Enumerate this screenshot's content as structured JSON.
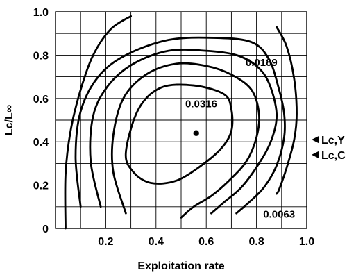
{
  "chart_data": {
    "type": "contour",
    "title": "",
    "xlabel": "Exploitation rate",
    "ylabel": "Lc/L∞",
    "xlim": [
      0,
      1
    ],
    "ylim": [
      0,
      1
    ],
    "x_tick_labels": [
      "0.2",
      "0.4",
      "0.6",
      "0.8",
      "1.0"
    ],
    "y_tick_labels": [
      "0",
      "0.2",
      "0.4",
      "0.6",
      "0.8",
      "1.0"
    ],
    "grid": true,
    "maximum_point": {
      "x": 0.56,
      "y": 0.44
    },
    "contour_labels": [
      "0.0316",
      "0.0189",
      "0.0063"
    ],
    "side_markers": [
      {
        "label": "Lc,Y",
        "y": 0.41
      },
      {
        "label": "Lc,C",
        "y": 0.34
      }
    ],
    "contours": [
      {
        "name": "innermost",
        "closed": true,
        "points": [
          [
            0.28,
            0.35
          ],
          [
            0.33,
            0.55
          ],
          [
            0.42,
            0.65
          ],
          [
            0.55,
            0.66
          ],
          [
            0.67,
            0.62
          ],
          [
            0.7,
            0.55
          ],
          [
            0.7,
            0.45
          ],
          [
            0.66,
            0.37
          ],
          [
            0.58,
            0.29
          ],
          [
            0.48,
            0.22
          ],
          [
            0.38,
            0.21
          ],
          [
            0.31,
            0.26
          ]
        ]
      },
      {
        "name": "0.0316",
        "closed": false,
        "points": [
          [
            0.28,
            0.07
          ],
          [
            0.23,
            0.26
          ],
          [
            0.23,
            0.43
          ],
          [
            0.27,
            0.6
          ],
          [
            0.36,
            0.71
          ],
          [
            0.48,
            0.76
          ],
          [
            0.6,
            0.75
          ],
          [
            0.7,
            0.71
          ],
          [
            0.78,
            0.64
          ],
          [
            0.81,
            0.53
          ],
          [
            0.8,
            0.42
          ],
          [
            0.76,
            0.31
          ],
          [
            0.69,
            0.22
          ],
          [
            0.62,
            0.15
          ],
          [
            0.55,
            0.1
          ],
          [
            0.5,
            0.05
          ]
        ]
      },
      {
        "name": "0.0189",
        "closed": false,
        "points": [
          [
            0.18,
            0.1
          ],
          [
            0.14,
            0.31
          ],
          [
            0.15,
            0.52
          ],
          [
            0.21,
            0.66
          ],
          [
            0.31,
            0.76
          ],
          [
            0.45,
            0.82
          ],
          [
            0.6,
            0.82
          ],
          [
            0.72,
            0.8
          ],
          [
            0.8,
            0.75
          ],
          [
            0.85,
            0.67
          ],
          [
            0.88,
            0.53
          ],
          [
            0.86,
            0.41
          ],
          [
            0.81,
            0.3
          ],
          [
            0.74,
            0.19
          ],
          [
            0.67,
            0.12
          ],
          [
            0.62,
            0.07
          ]
        ]
      },
      {
        "name": "0.0063",
        "closed": false,
        "points": [
          [
            0.1,
            0.1
          ],
          [
            0.08,
            0.33
          ],
          [
            0.1,
            0.54
          ],
          [
            0.17,
            0.7
          ],
          [
            0.28,
            0.8
          ],
          [
            0.45,
            0.87
          ],
          [
            0.63,
            0.88
          ],
          [
            0.78,
            0.86
          ],
          [
            0.85,
            0.78
          ],
          [
            0.89,
            0.64
          ],
          [
            0.91,
            0.53
          ],
          [
            0.91,
            0.42
          ],
          [
            0.88,
            0.29
          ],
          [
            0.83,
            0.19
          ],
          [
            0.77,
            0.12
          ],
          [
            0.72,
            0.07
          ]
        ]
      },
      {
        "name": "outer-left",
        "closed": false,
        "points": [
          [
            0.04,
            0.0
          ],
          [
            0.04,
            0.25
          ],
          [
            0.06,
            0.45
          ],
          [
            0.1,
            0.64
          ],
          [
            0.15,
            0.8
          ],
          [
            0.22,
            0.92
          ],
          [
            0.3,
            0.98
          ]
        ]
      },
      {
        "name": "outer-right",
        "closed": false,
        "points": [
          [
            0.88,
            0.93
          ],
          [
            0.92,
            0.84
          ],
          [
            0.95,
            0.69
          ],
          [
            0.96,
            0.53
          ],
          [
            0.95,
            0.41
          ],
          [
            0.92,
            0.28
          ],
          [
            0.89,
            0.18
          ],
          [
            0.88,
            0.16
          ]
        ]
      }
    ],
    "colors": {
      "line": "#000000",
      "background": "#ffffff"
    }
  }
}
